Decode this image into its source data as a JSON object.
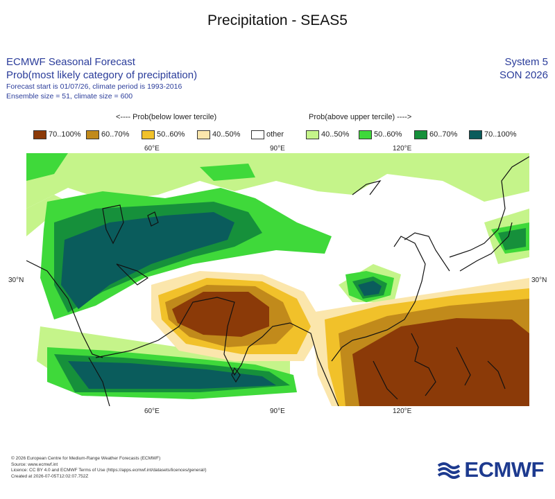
{
  "page_title": "Precipitation - SEAS5",
  "header": {
    "product": "ECMWF Seasonal Forecast",
    "variable": "Prob(most likely category of precipitation)",
    "forecast_info": "Forecast start is 01/07/26, climate period is 1993-2016",
    "ensemble_info": "Ensemble size = 51, climate size = 600",
    "system": "System 5",
    "season": "SON 2026"
  },
  "legend": {
    "below_caption": "<---- Prob(below lower tercile)",
    "above_caption": "Prob(above upper tercile) ---->",
    "items": [
      {
        "label": "70..100%",
        "color": "#8b3a08"
      },
      {
        "label": "60..70%",
        "color": "#c18a1b"
      },
      {
        "label": "50..60%",
        "color": "#f1c12a"
      },
      {
        "label": "40..50%",
        "color": "#fbe6ac"
      },
      {
        "label": "other",
        "color": "#ffffff"
      },
      {
        "label": "40..50%",
        "color": "#c5f48a"
      },
      {
        "label": "50..60%",
        "color": "#3fd93a"
      },
      {
        "label": "60..70%",
        "color": "#16903b"
      },
      {
        "label": "70..100%",
        "color": "#0a5c5c"
      }
    ]
  },
  "map": {
    "top_axis": [
      "60°E",
      "90°E",
      "120°E"
    ],
    "bottom_axis": [
      "60°E",
      "90°E",
      "120°E"
    ],
    "left_axis": [
      "30°N"
    ],
    "right_axis": [
      "30°N"
    ]
  },
  "footer": {
    "copyright": "© 2026 European Centre for Medium-Range Weather Forecasts (ECMWF)",
    "source": "Source: www.ecmwf.int",
    "licence": "Licence: CC BY 4.0 and ECMWF Terms of Use (https://apps.ecmwf.int/datasets/licences/general/)",
    "created": "Created at 2026-07-05T12:02:07.752Z"
  },
  "logo_text": "ECMWF"
}
